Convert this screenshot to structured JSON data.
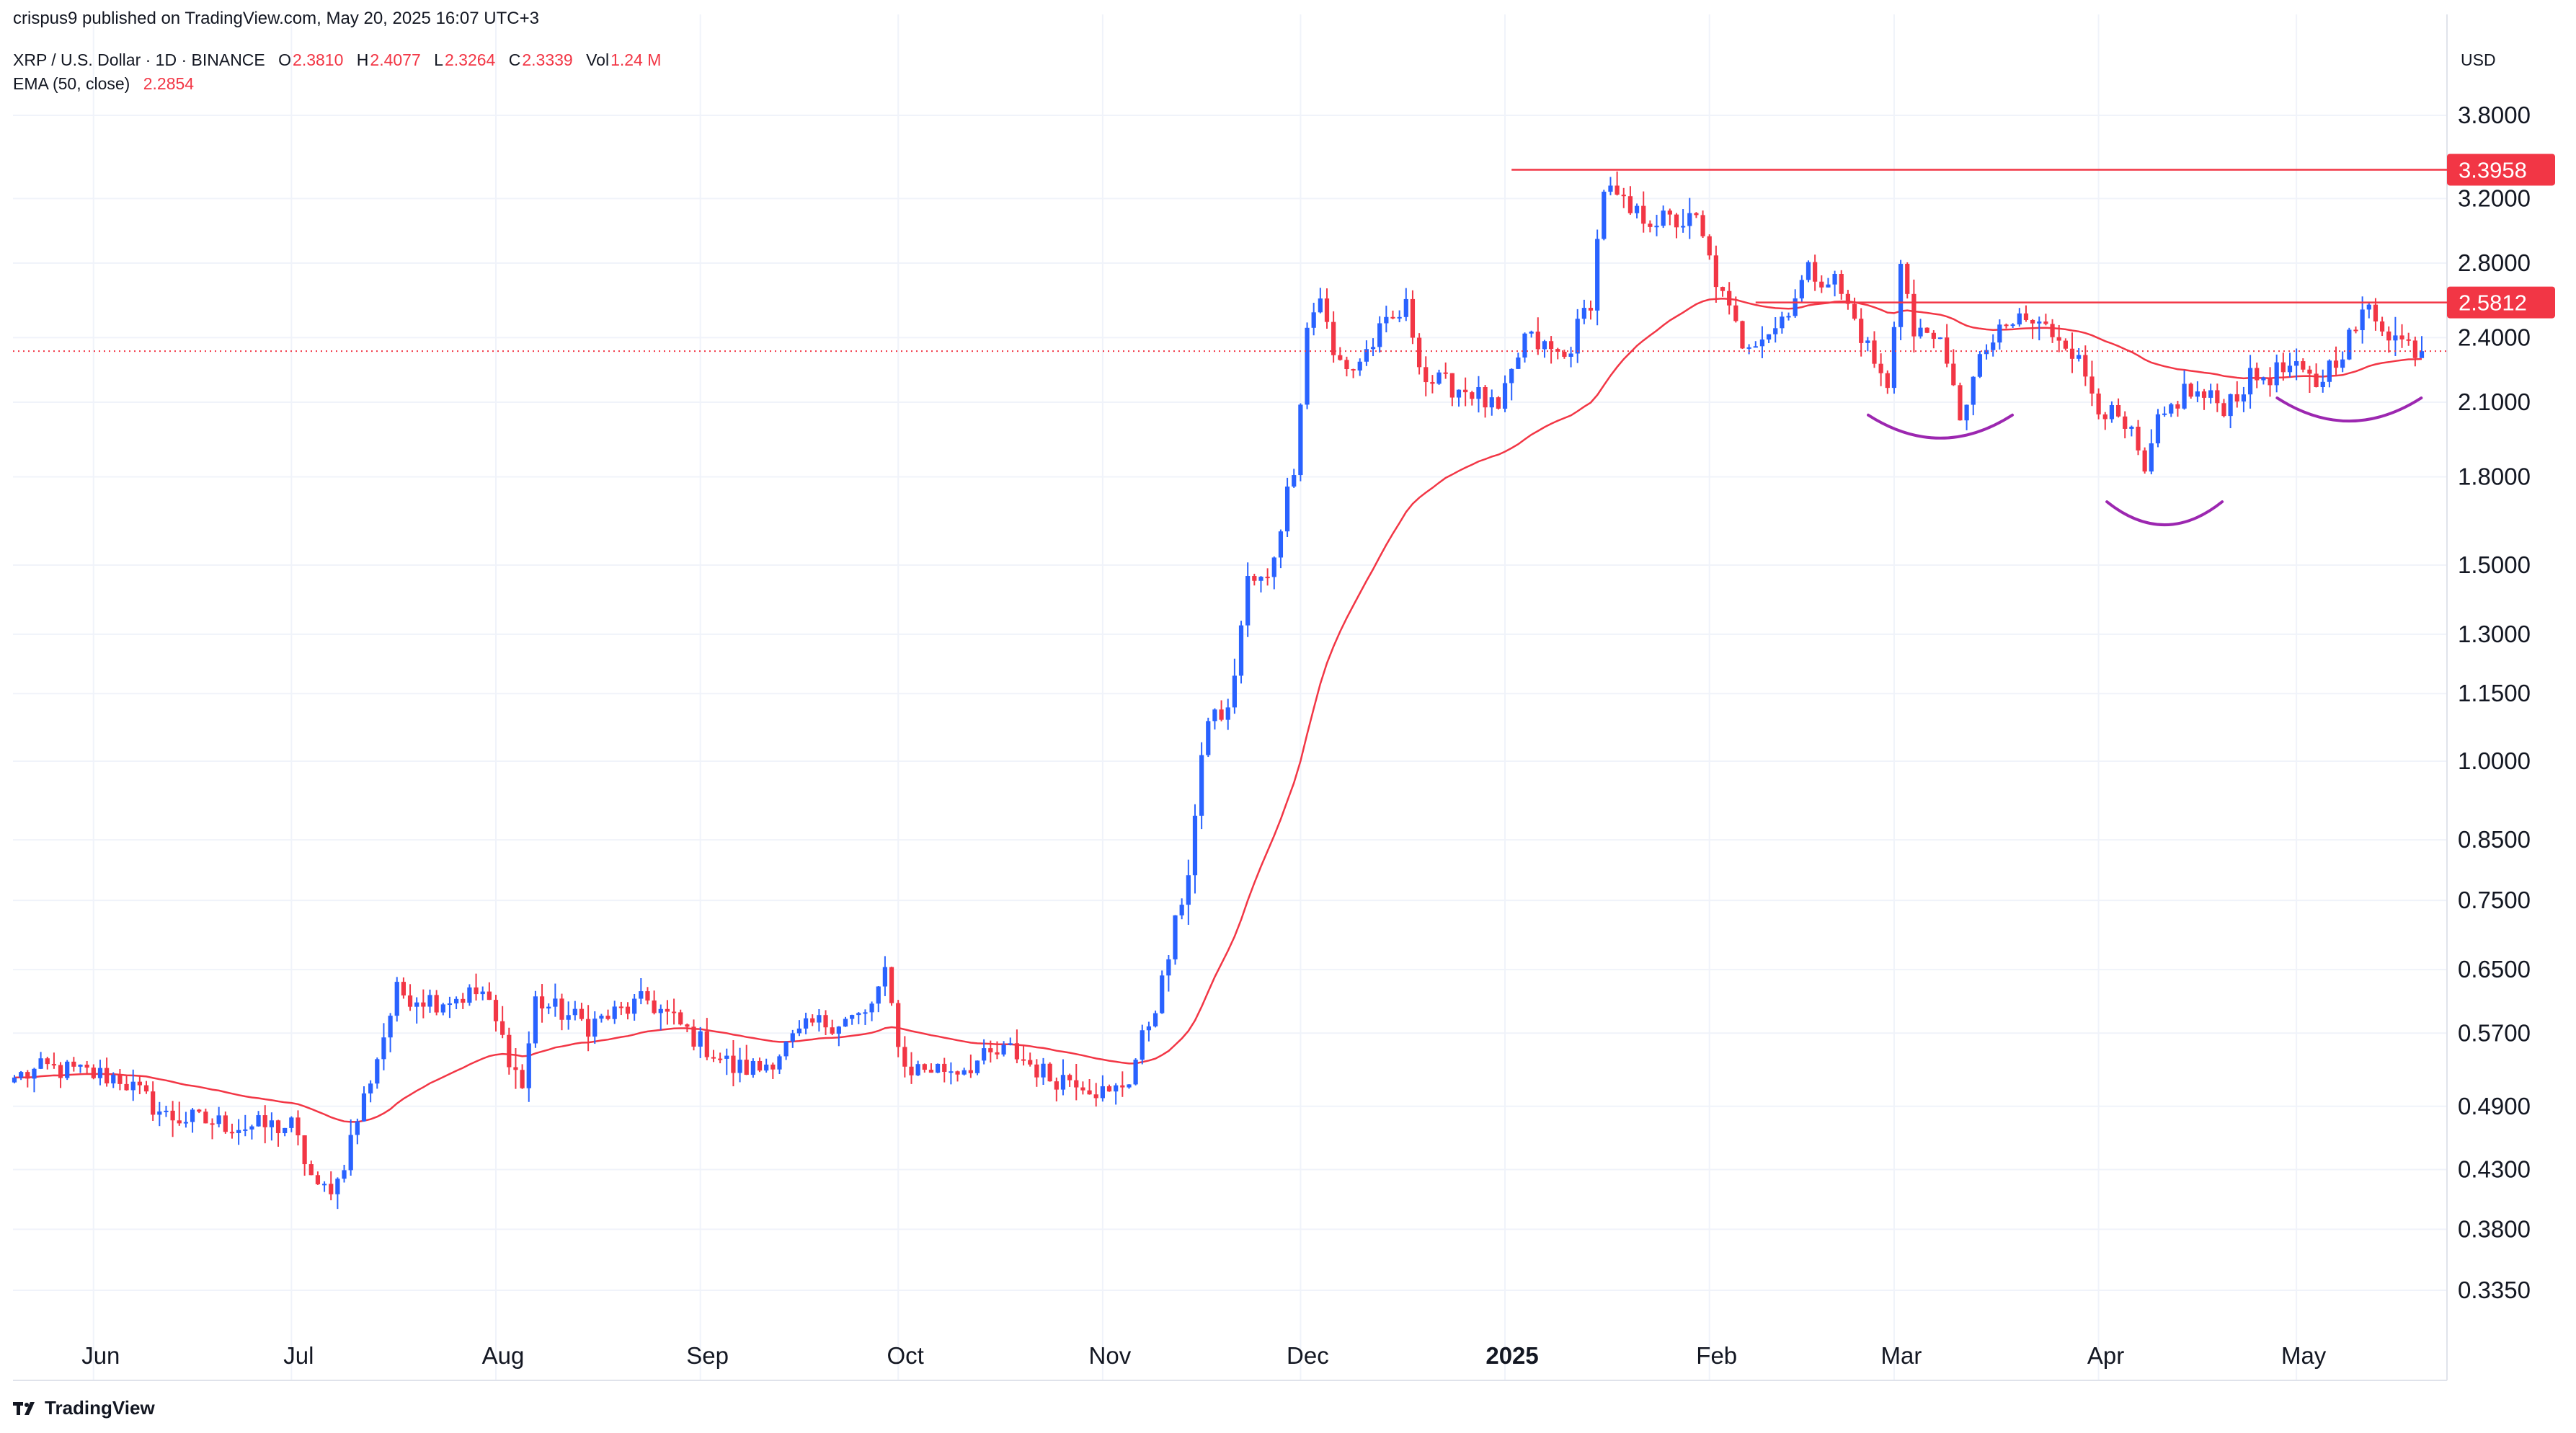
{
  "header": {
    "publish_line": "crispus9 published on TradingView.com, May 20, 2025 16:07 UTC+3",
    "symbol": "XRP / U.S. Dollar · 1D · BINANCE",
    "open_label": "O",
    "open": "2.3810",
    "high_label": "H",
    "high": "2.4077",
    "low_label": "L",
    "low": "2.3264",
    "close_label": "C",
    "close": "2.3339",
    "vol_label": "Vol",
    "vol": "1.24 M",
    "ema_label": "EMA (50, close)",
    "ema_value": "2.2854"
  },
  "currency": "USD",
  "brand": "TradingView",
  "colors": {
    "up": "#2962ff",
    "down": "#f23645",
    "ema": "#f23645",
    "levels": "#f23645",
    "arcs": "#9c27b0",
    "grid": "#f0f3fa"
  },
  "chart_data": {
    "type": "candlestick",
    "scale": "log",
    "title": "XRP / U.S. Dollar · 1D · BINANCE",
    "ylim": [
      0.3,
      4.3
    ],
    "y_ticks": [
      "3.8000",
      "3.2000",
      "2.8000",
      "2.4000",
      "2.1000",
      "1.8000",
      "1.5000",
      "1.3000",
      "1.1500",
      "1.0000",
      "0.8500",
      "0.7500",
      "0.6500",
      "0.5700",
      "0.4900",
      "0.4300",
      "0.3800",
      "0.3350"
    ],
    "x_labels": [
      {
        "label": "Jun",
        "date": "2024-06-01"
      },
      {
        "label": "Jul",
        "date": "2024-07-01"
      },
      {
        "label": "Aug",
        "date": "2024-08-01"
      },
      {
        "label": "Sep",
        "date": "2024-09-01"
      },
      {
        "label": "Oct",
        "date": "2024-10-01"
      },
      {
        "label": "Nov",
        "date": "2024-11-01"
      },
      {
        "label": "Dec",
        "date": "2024-12-01"
      },
      {
        "label": "2025",
        "date": "2025-01-01",
        "bold": true
      },
      {
        "label": "Feb",
        "date": "2025-02-01"
      },
      {
        "label": "Mar",
        "date": "2025-03-01"
      },
      {
        "label": "Apr",
        "date": "2025-04-01"
      },
      {
        "label": "May",
        "date": "2025-05-01"
      }
    ],
    "x_range": [
      "2024-05-20",
      "2025-05-20"
    ],
    "price_waypoints": [
      [
        "2024-05-20",
        0.52
      ],
      [
        "2024-05-25",
        0.53
      ],
      [
        "2024-06-05",
        0.52
      ],
      [
        "2024-06-12",
        0.48
      ],
      [
        "2024-06-24",
        0.47
      ],
      [
        "2024-07-01",
        0.47
      ],
      [
        "2024-07-05",
        0.41
      ],
      [
        "2024-07-08",
        0.42
      ],
      [
        "2024-07-13",
        0.52
      ],
      [
        "2024-07-17",
        0.62
      ],
      [
        "2024-07-23",
        0.61
      ],
      [
        "2024-07-30",
        0.62
      ],
      [
        "2024-08-05",
        0.51
      ],
      [
        "2024-08-07",
        0.61
      ],
      [
        "2024-08-15",
        0.58
      ],
      [
        "2024-08-24",
        0.61
      ],
      [
        "2024-09-01",
        0.56
      ],
      [
        "2024-09-06",
        0.53
      ],
      [
        "2024-09-10",
        0.53
      ],
      [
        "2024-09-18",
        0.58
      ],
      [
        "2024-09-26",
        0.59
      ],
      [
        "2024-09-29",
        0.64
      ],
      [
        "2024-10-02",
        0.53
      ],
      [
        "2024-10-10",
        0.53
      ],
      [
        "2024-10-18",
        0.55
      ],
      [
        "2024-10-24",
        0.52
      ],
      [
        "2024-10-28",
        0.52
      ],
      [
        "2024-11-02",
        0.5
      ],
      [
        "2024-11-05",
        0.52
      ],
      [
        "2024-11-10",
        0.63
      ],
      [
        "2024-11-14",
        0.8
      ],
      [
        "2024-11-17",
        1.1
      ],
      [
        "2024-11-20",
        1.1
      ],
      [
        "2024-11-23",
        1.45
      ],
      [
        "2024-11-26",
        1.45
      ],
      [
        "2024-11-30",
        1.85
      ],
      [
        "2024-12-02",
        2.45
      ],
      [
        "2024-12-04",
        2.62
      ],
      [
        "2024-12-06",
        2.3
      ],
      [
        "2024-12-09",
        2.25
      ],
      [
        "2024-12-13",
        2.42
      ],
      [
        "2024-12-17",
        2.55
      ],
      [
        "2024-12-20",
        2.2
      ],
      [
        "2024-12-27",
        2.15
      ],
      [
        "2024-12-31",
        2.05
      ],
      [
        "2025-01-04",
        2.4
      ],
      [
        "2025-01-10",
        2.3
      ],
      [
        "2025-01-14",
        2.6
      ],
      [
        "2025-01-16",
        3.28
      ],
      [
        "2025-01-20",
        3.1
      ],
      [
        "2025-01-26",
        3.05
      ],
      [
        "2025-01-30",
        3.05
      ],
      [
        "2025-02-03",
        2.6
      ],
      [
        "2025-02-06",
        2.38
      ],
      [
        "2025-02-11",
        2.45
      ],
      [
        "2025-02-16",
        2.75
      ],
      [
        "2025-02-20",
        2.7
      ],
      [
        "2025-02-24",
        2.42
      ],
      [
        "2025-02-28",
        2.15
      ],
      [
        "2025-03-02",
        2.85
      ],
      [
        "2025-03-04",
        2.4
      ],
      [
        "2025-03-07",
        2.45
      ],
      [
        "2025-03-11",
        2.05
      ],
      [
        "2025-03-15",
        2.35
      ],
      [
        "2025-03-20",
        2.5
      ],
      [
        "2025-03-27",
        2.4
      ],
      [
        "2025-04-01",
        2.1
      ],
      [
        "2025-04-06",
        1.95
      ],
      [
        "2025-04-08",
        1.8
      ],
      [
        "2025-04-10",
        2.0
      ],
      [
        "2025-04-14",
        2.15
      ],
      [
        "2025-04-20",
        2.09
      ],
      [
        "2025-04-24",
        2.2
      ],
      [
        "2025-04-30",
        2.25
      ],
      [
        "2025-05-04",
        2.18
      ],
      [
        "2025-05-08",
        2.35
      ],
      [
        "2025-05-12",
        2.55
      ],
      [
        "2025-05-16",
        2.4
      ],
      [
        "2025-05-20",
        2.3339
      ]
    ],
    "ema": {
      "name": "EMA (50, close)",
      "period": 50,
      "last": 2.2854
    },
    "horizontal_levels": [
      {
        "value": 3.3958,
        "label": "3.3958",
        "from": "2025-01-02"
      },
      {
        "value": 2.5812,
        "label": "2.5812",
        "from": "2025-02-08"
      }
    ],
    "last_price": 2.3339,
    "annotations": [
      {
        "type": "arc",
        "label": "",
        "center": "2025-03-08",
        "price": 1.95
      },
      {
        "type": "arc",
        "label": "",
        "center": "2025-04-11",
        "price": 1.63
      },
      {
        "type": "arc",
        "label": "",
        "center": "2025-05-09",
        "price": 2.02
      }
    ]
  }
}
